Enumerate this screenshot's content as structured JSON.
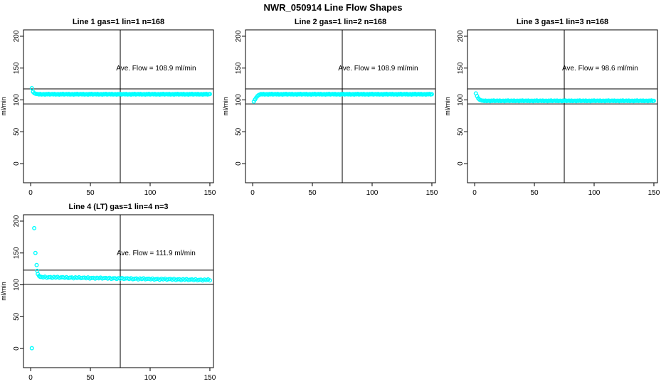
{
  "main_title": "NWR_050914  Line Flow Shapes",
  "colors": {
    "points": "#00ffff",
    "axis": "#000000",
    "text": "#000000",
    "background": "#ffffff"
  },
  "chart_data": [
    {
      "type": "scatter",
      "title": "Line 1 gas=1 lin=1 n=168",
      "xlabel": "",
      "ylabel": "ml/min",
      "annotation": "Ave. Flow =  108.9  ml/min",
      "ave_flow": 108.9,
      "n": 168,
      "x_ticks": [
        0,
        50,
        100,
        150
      ],
      "y_ticks": [
        0,
        50,
        100,
        150,
        200
      ],
      "xlim": [
        -6,
        153
      ],
      "ylim": [
        -30,
        210
      ],
      "ref_lines": [
        117.3,
        93.8
      ],
      "v_line": 75,
      "x_start": 1,
      "x_step": 1,
      "y_values": [
        118.5,
        112.8,
        110.6,
        109.8,
        109.4,
        109.2,
        108.7,
        109.4,
        108.5,
        108.9,
        109.1,
        108.4,
        109.3,
        108.8,
        109.5,
        108.6,
        109.0,
        109.2,
        108.7,
        109.4,
        108.5,
        108.9,
        109.1,
        108.4,
        109.3,
        108.8,
        109.5,
        108.6,
        109.0,
        109.2,
        108.7,
        109.4,
        108.5,
        108.9,
        109.1,
        108.4,
        109.3,
        108.8,
        109.5,
        108.6,
        109.0,
        109.2,
        108.7,
        109.4,
        108.5,
        108.9,
        109.1,
        108.4,
        109.3,
        108.8,
        109.5,
        108.6,
        109.0,
        109.2,
        108.7,
        109.4,
        108.5,
        108.9,
        109.1,
        108.4,
        109.3,
        108.8,
        109.5,
        108.6,
        109.0,
        109.2,
        108.7,
        109.4,
        108.5,
        108.9,
        109.1,
        108.4,
        109.3,
        108.8,
        109.5,
        108.6,
        109.0,
        109.2,
        108.7,
        109.4,
        108.5,
        108.9,
        109.1,
        108.4,
        109.3,
        108.8,
        109.5,
        108.6,
        109.0,
        109.2,
        108.7,
        109.4,
        108.5,
        108.9,
        109.1,
        108.4,
        109.3,
        108.8,
        109.5,
        108.6,
        109.0,
        109.2,
        108.7,
        109.4,
        108.5,
        108.9,
        109.1,
        108.4,
        109.3,
        108.8,
        109.5,
        108.6,
        109.0,
        109.2,
        108.7,
        109.4,
        108.5,
        108.9,
        109.1,
        108.4,
        109.3,
        108.8,
        109.5,
        108.6,
        109.0,
        109.2,
        108.7,
        109.4,
        108.5,
        108.9,
        109.1,
        108.4,
        109.3,
        108.8,
        109.5,
        108.6,
        109.0,
        109.2,
        108.7,
        109.4,
        108.5,
        108.9,
        109.1,
        108.4,
        109.3,
        108.8,
        109.5,
        108.6,
        109.0,
        109.2
      ]
    },
    {
      "type": "scatter",
      "title": "Line 2 gas=1 lin=2 n=168",
      "xlabel": "",
      "ylabel": "ml/min",
      "annotation": "Ave. Flow =  108.9  ml/min",
      "ave_flow": 108.9,
      "n": 168,
      "x_ticks": [
        0,
        50,
        100,
        150
      ],
      "y_ticks": [
        0,
        50,
        100,
        150,
        200
      ],
      "xlim": [
        -6,
        153
      ],
      "ylim": [
        -30,
        210
      ],
      "ref_lines": [
        117.3,
        93.8
      ],
      "v_line": 75,
      "x_start": 1,
      "x_step": 1,
      "y_values": [
        97.5,
        100.8,
        103.6,
        106.0,
        107.6,
        108.4,
        109.2,
        108.7,
        109.4,
        108.5,
        108.9,
        109.1,
        108.4,
        109.3,
        108.8,
        109.5,
        108.6,
        109.0,
        109.2,
        108.7,
        109.4,
        108.5,
        108.9,
        109.1,
        108.4,
        109.3,
        108.8,
        109.5,
        108.6,
        109.0,
        109.2,
        108.7,
        109.4,
        108.5,
        108.9,
        109.1,
        108.4,
        109.3,
        108.8,
        109.5,
        108.6,
        109.0,
        109.2,
        108.7,
        109.4,
        108.5,
        108.9,
        109.1,
        108.4,
        109.3,
        108.8,
        109.5,
        108.6,
        109.0,
        109.2,
        108.7,
        109.4,
        108.5,
        108.9,
        109.1,
        108.4,
        109.3,
        108.8,
        109.5,
        108.6,
        109.0,
        109.2,
        108.7,
        109.4,
        108.5,
        108.9,
        109.1,
        108.4,
        109.3,
        108.8,
        109.5,
        108.6,
        109.0,
        109.2,
        108.7,
        109.4,
        108.5,
        108.9,
        109.1,
        108.4,
        109.3,
        108.8,
        109.5,
        108.6,
        109.0,
        109.2,
        108.7,
        109.4,
        108.5,
        108.9,
        109.1,
        108.4,
        109.3,
        108.8,
        109.5,
        108.6,
        109.0,
        109.2,
        108.7,
        109.4,
        108.5,
        108.9,
        109.1,
        108.4,
        109.3,
        108.8,
        109.5,
        108.6,
        109.0,
        109.2,
        108.7,
        109.4,
        108.5,
        108.9,
        109.1,
        108.4,
        109.3,
        108.8,
        109.5,
        108.6,
        109.0,
        109.2,
        108.7,
        109.4,
        108.5,
        108.9,
        109.1,
        108.4,
        109.3,
        108.8,
        109.5,
        108.6,
        109.0,
        109.2,
        108.7,
        109.4,
        108.5,
        108.9,
        109.1,
        108.4,
        109.3,
        108.8,
        109.5,
        108.6,
        109.0
      ]
    },
    {
      "type": "scatter",
      "title": "Line 3 gas=1 lin=3 n=168",
      "xlabel": "",
      "ylabel": "ml/min",
      "annotation": "Ave. Flow =  98.6  ml/min",
      "ave_flow": 98.6,
      "n": 168,
      "x_ticks": [
        0,
        50,
        100,
        150
      ],
      "y_ticks": [
        0,
        50,
        100,
        150,
        200
      ],
      "xlim": [
        -6,
        153
      ],
      "ylim": [
        -30,
        210
      ],
      "ref_lines": [
        117.3,
        93.8
      ],
      "v_line": 75,
      "x_start": 1,
      "x_step": 1,
      "y_values": [
        110.3,
        106.0,
        102.6,
        100.6,
        99.6,
        99.0,
        98.9,
        98.4,
        99.1,
        98.2,
        98.6,
        98.8,
        98.1,
        99.0,
        98.5,
        99.2,
        98.3,
        98.7,
        98.9,
        98.4,
        99.1,
        98.2,
        98.6,
        98.8,
        98.1,
        99.0,
        98.5,
        99.2,
        98.3,
        98.7,
        98.9,
        98.4,
        99.1,
        98.2,
        98.6,
        98.8,
        98.1,
        99.0,
        98.5,
        99.2,
        98.3,
        98.7,
        98.9,
        98.4,
        99.1,
        98.2,
        98.6,
        98.8,
        98.1,
        99.0,
        98.5,
        99.2,
        98.3,
        98.7,
        98.9,
        98.4,
        99.1,
        98.2,
        98.6,
        98.8,
        98.1,
        99.0,
        98.5,
        99.2,
        98.3,
        98.7,
        98.9,
        98.4,
        99.1,
        98.2,
        98.6,
        98.8,
        98.1,
        99.0,
        98.5,
        99.2,
        98.3,
        98.7,
        98.9,
        98.4,
        99.1,
        98.2,
        98.6,
        98.8,
        98.1,
        99.0,
        98.5,
        99.2,
        98.3,
        98.7,
        98.9,
        98.4,
        99.1,
        98.2,
        98.6,
        98.8,
        98.1,
        99.0,
        98.5,
        99.2,
        98.3,
        98.7,
        98.9,
        98.4,
        99.1,
        98.2,
        98.6,
        98.8,
        98.1,
        99.0,
        98.5,
        99.2,
        98.3,
        98.7,
        98.9,
        98.4,
        99.1,
        98.2,
        98.6,
        98.8,
        98.1,
        99.0,
        98.5,
        99.2,
        98.3,
        98.7,
        98.9,
        98.4,
        99.1,
        98.2,
        98.6,
        98.8,
        98.1,
        99.0,
        98.5,
        99.2,
        98.3,
        98.7,
        98.9,
        98.4,
        99.1,
        98.2,
        98.6,
        98.8,
        98.1,
        99.0,
        98.5,
        99.2,
        98.3,
        98.7
      ]
    },
    {
      "type": "scatter",
      "title": "Line 4 (LT) gas=1 lin=4 n=3",
      "xlabel": "",
      "ylabel": "ml/min",
      "annotation": "Ave. Flow =  111.9  ml/min",
      "ave_flow": 111.9,
      "n": 3,
      "x_ticks": [
        0,
        50,
        100,
        150
      ],
      "y_ticks": [
        0,
        50,
        100,
        150,
        200
      ],
      "xlim": [
        -6,
        153
      ],
      "ylim": [
        -30,
        210
      ],
      "ref_lines": [
        123.1,
        100.7
      ],
      "v_line": 75,
      "points": [
        [
          1,
          0.5
        ],
        [
          3,
          189
        ],
        [
          4,
          150
        ],
        [
          5,
          131
        ],
        [
          5.5,
          122
        ],
        [
          6,
          117
        ],
        [
          7,
          114
        ],
        [
          8,
          112.5
        ],
        [
          9,
          112.5
        ],
        [
          10.5,
          111.6
        ],
        [
          12,
          112.7
        ],
        [
          13.5,
          111.2
        ],
        [
          15,
          111.9
        ],
        [
          16.5,
          112.2
        ],
        [
          18,
          110.9
        ],
        [
          19.5,
          112.3
        ],
        [
          21,
          111.4
        ],
        [
          22.5,
          112.5
        ],
        [
          24,
          111
        ],
        [
          25.5,
          111.7
        ],
        [
          27,
          111.9
        ],
        [
          28.5,
          111
        ],
        [
          30,
          112.1
        ],
        [
          31.5,
          110.6
        ],
        [
          33,
          111.3
        ],
        [
          34.5,
          111.6
        ],
        [
          36,
          110.3
        ],
        [
          37.5,
          111.7
        ],
        [
          39,
          110.8
        ],
        [
          40.5,
          111.9
        ],
        [
          42,
          110.5
        ],
        [
          43.5,
          111.1
        ],
        [
          45,
          111.4
        ],
        [
          46.5,
          110.4
        ],
        [
          48,
          111.6
        ],
        [
          49.5,
          110
        ],
        [
          51,
          110.8
        ],
        [
          52.5,
          111
        ],
        [
          54,
          109.8
        ],
        [
          55.5,
          111.1
        ],
        [
          57,
          110.3
        ],
        [
          58.5,
          111.3
        ],
        [
          60,
          109.9
        ],
        [
          61.5,
          110.5
        ],
        [
          63,
          110.8
        ],
        [
          64.5,
          109.8
        ],
        [
          66,
          111
        ],
        [
          67.5,
          109.4
        ],
        [
          69,
          110.2
        ],
        [
          70.5,
          110.4
        ],
        [
          72,
          109.2
        ],
        [
          73.5,
          110.5
        ],
        [
          75,
          109.7
        ],
        [
          76.5,
          110.8
        ],
        [
          78,
          109.3
        ],
        [
          79.5,
          110
        ],
        [
          81,
          110.2
        ],
        [
          82.5,
          109.3
        ],
        [
          84,
          110.4
        ],
        [
          85.5,
          108.9
        ],
        [
          87,
          109.6
        ],
        [
          88.5,
          109.9
        ],
        [
          90,
          108.6
        ],
        [
          91.5,
          110
        ],
        [
          93,
          109.1
        ],
        [
          94.5,
          110.2
        ],
        [
          96,
          108.7
        ],
        [
          97.5,
          109.4
        ],
        [
          99,
          109.6
        ],
        [
          100.5,
          108.7
        ],
        [
          102,
          109.8
        ],
        [
          103.5,
          108.3
        ],
        [
          105,
          109
        ],
        [
          106.5,
          109.3
        ],
        [
          108,
          108
        ],
        [
          109.5,
          109.4
        ],
        [
          111,
          108.6
        ],
        [
          112.5,
          109.6
        ],
        [
          114,
          108.2
        ],
        [
          115.5,
          108.8
        ],
        [
          117,
          109.1
        ],
        [
          118.5,
          108.1
        ],
        [
          120,
          109.3
        ],
        [
          121.5,
          107.7
        ],
        [
          123,
          108.5
        ],
        [
          124.5,
          108.7
        ],
        [
          126,
          107.5
        ],
        [
          127.5,
          108.8
        ],
        [
          129,
          108
        ],
        [
          130.5,
          109
        ],
        [
          132,
          107.6
        ],
        [
          133.5,
          108.2
        ],
        [
          135,
          108.5
        ],
        [
          136.5,
          107.5
        ],
        [
          138,
          108.7
        ],
        [
          139.5,
          107.1
        ],
        [
          141,
          107.9
        ],
        [
          142.5,
          108.1
        ],
        [
          144,
          106.9
        ],
        [
          145.5,
          108.3
        ],
        [
          147,
          107.4
        ],
        [
          148.5,
          108.5
        ],
        [
          150,
          107
        ]
      ]
    }
  ]
}
